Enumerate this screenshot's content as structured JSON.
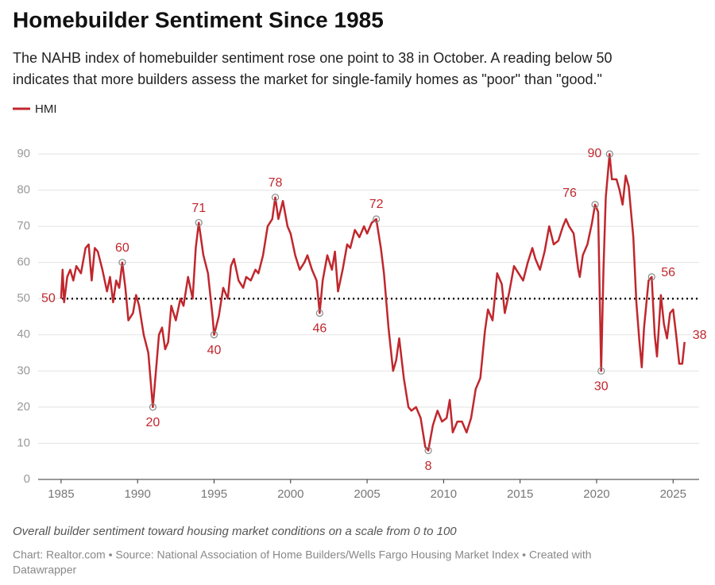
{
  "chart_data": {
    "type": "line",
    "title": "Homebuilder Sentiment Since 1985",
    "subtitle": [
      "The NAHB index of homebuilder sentiment rose one point to 38 in October. A reading below 50",
      "indicates that more builders assess the market for single-family homes as \"poor\" than \"good.\""
    ],
    "note": "Overall builder sentiment toward housing market conditions on a scale from 0 to 100",
    "source": [
      "Chart: Realtor.com • Source: National Association of Home Builders/Wells Fargo Housing Market Index • Created with",
      "Datawrapper"
    ],
    "x": [
      1985.0,
      1985.1,
      1985.2,
      1985.4,
      1985.6,
      1985.8,
      1986.0,
      1986.3,
      1986.6,
      1986.8,
      1987.0,
      1987.2,
      1987.4,
      1987.7,
      1988.0,
      1988.2,
      1988.4,
      1988.6,
      1988.8,
      1989.0,
      1989.2,
      1989.4,
      1989.7,
      1989.9,
      1990.1,
      1990.4,
      1990.7,
      1990.9,
      1991.0,
      1991.2,
      1991.4,
      1991.6,
      1991.8,
      1992.0,
      1992.2,
      1992.5,
      1992.8,
      1993.0,
      1993.3,
      1993.6,
      1993.8,
      1994.0,
      1994.3,
      1994.6,
      1994.9,
      1995.0,
      1995.3,
      1995.6,
      1995.9,
      1996.1,
      1996.3,
      1996.6,
      1996.9,
      1997.1,
      1997.4,
      1997.7,
      1997.9,
      1998.2,
      1998.5,
      1998.8,
      1999.0,
      1999.2,
      1999.5,
      1999.8,
      2000.0,
      2000.3,
      2000.6,
      2000.9,
      2001.1,
      2001.4,
      2001.7,
      2001.9,
      2002.1,
      2002.4,
      2002.7,
      2002.9,
      2003.1,
      2003.4,
      2003.7,
      2003.9,
      2004.2,
      2004.5,
      2004.8,
      2005.0,
      2005.3,
      2005.6,
      2005.9,
      2006.1,
      2006.4,
      2006.7,
      2006.9,
      2007.1,
      2007.4,
      2007.7,
      2007.9,
      2008.2,
      2008.5,
      2008.8,
      2009.0,
      2009.3,
      2009.6,
      2009.9,
      2010.2,
      2010.4,
      2010.6,
      2010.9,
      2011.2,
      2011.5,
      2011.8,
      2012.1,
      2012.4,
      2012.7,
      2012.9,
      2013.2,
      2013.5,
      2013.8,
      2014.0,
      2014.3,
      2014.6,
      2014.9,
      2015.2,
      2015.5,
      2015.8,
      2016.0,
      2016.3,
      2016.6,
      2016.9,
      2017.2,
      2017.5,
      2017.8,
      2018.0,
      2018.2,
      2018.5,
      2018.8,
      2018.9,
      2019.1,
      2019.4,
      2019.7,
      2019.9,
      2020.1,
      2020.3,
      2020.45,
      2020.6,
      2020.85,
      2021.0,
      2021.3,
      2021.5,
      2021.7,
      2021.9,
      2022.1,
      2022.4,
      2022.6,
      2022.8,
      2022.95,
      2023.1,
      2023.4,
      2023.6,
      2023.8,
      2023.95,
      2024.2,
      2024.4,
      2024.6,
      2024.8,
      2025.0,
      2025.2,
      2025.4,
      2025.6,
      2025.75
    ],
    "series": [
      {
        "name": "HMI",
        "color": "#c0272d",
        "values": [
          50,
          58,
          49,
          56,
          58,
          55,
          59,
          57,
          64,
          65,
          55,
          64,
          63,
          58,
          52,
          56,
          49,
          55,
          53,
          60,
          53,
          44,
          46,
          51,
          48,
          40,
          35,
          25,
          20,
          30,
          40,
          42,
          36,
          38,
          48,
          44,
          50,
          48,
          56,
          50,
          64,
          71,
          62,
          57,
          45,
          40,
          45,
          53,
          50,
          59,
          61,
          55,
          53,
          56,
          55,
          58,
          57,
          62,
          70,
          72,
          78,
          72,
          77,
          70,
          68,
          62,
          58,
          60,
          62,
          58,
          55,
          46,
          55,
          62,
          58,
          63,
          52,
          58,
          65,
          64,
          69,
          67,
          70,
          68,
          71,
          72,
          64,
          57,
          42,
          30,
          33,
          39,
          28,
          20,
          19,
          20,
          17,
          9,
          8,
          15,
          19,
          16,
          17,
          22,
          13,
          16,
          16,
          13,
          17,
          25,
          28,
          41,
          47,
          44,
          57,
          54,
          46,
          52,
          59,
          57,
          55,
          60,
          64,
          61,
          58,
          63,
          70,
          65,
          66,
          70,
          72,
          70,
          68,
          58,
          56,
          62,
          65,
          71,
          76,
          74,
          30,
          58,
          78,
          90,
          83,
          83,
          80,
          76,
          84,
          81,
          67,
          49,
          38,
          31,
          42,
          55,
          56,
          40,
          34,
          51,
          43,
          39,
          46,
          47,
          40,
          32,
          32,
          38
        ]
      }
    ],
    "annotations": [
      {
        "x": 1989.0,
        "value": 60
      },
      {
        "x": 1991.0,
        "value": 20
      },
      {
        "x": 1994.0,
        "value": 71
      },
      {
        "x": 1995.0,
        "value": 40
      },
      {
        "x": 1999.0,
        "value": 78
      },
      {
        "x": 2001.9,
        "value": 46
      },
      {
        "x": 2005.6,
        "value": 72
      },
      {
        "x": 2009.0,
        "value": 8
      },
      {
        "x": 2019.9,
        "value": 76
      },
      {
        "x": 2020.3,
        "value": 30
      },
      {
        "x": 2020.85,
        "value": 90
      },
      {
        "x": 2023.6,
        "value": 56
      },
      {
        "x": 2025.75,
        "value": 38
      }
    ],
    "reference_line": 50,
    "xlim": [
      1983.5,
      2026.7
    ],
    "xticks": [
      1985,
      1990,
      1995,
      2000,
      2005,
      2010,
      2015,
      2020,
      2025
    ],
    "ylim": [
      0,
      90
    ],
    "yticks": [
      0,
      10,
      20,
      30,
      40,
      50,
      60,
      70,
      80,
      90
    ],
    "grid": true
  }
}
